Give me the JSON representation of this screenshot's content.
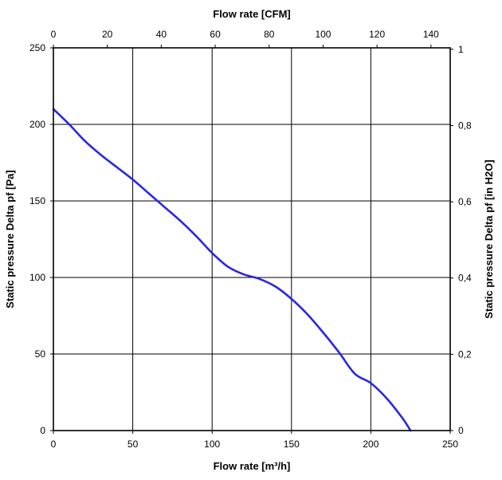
{
  "chart_data": {
    "type": "line",
    "x_top_label": "Flow rate [CFM]",
    "x_bottom_label": "Flow rate [m³/h]",
    "y_left_label": "Static pressure Delta pf [Pa]",
    "y_right_label": "Static pressure Delta pf [in H2O]",
    "x_bottom_range": [
      0,
      250
    ],
    "x_bottom_ticks": [
      "0",
      "50",
      "100",
      "150",
      "200",
      "250"
    ],
    "x_top_range": [
      0,
      147.14
    ],
    "x_top_ticks": [
      "0",
      "20",
      "40",
      "60",
      "80",
      "100",
      "120",
      "140"
    ],
    "y_left_range": [
      0,
      250
    ],
    "y_left_ticks": [
      "0",
      "50",
      "100",
      "150",
      "200",
      "250"
    ],
    "y_right_range": [
      0,
      1.0037
    ],
    "y_right_ticks": [
      "0",
      "0,2",
      "0,4",
      "0,6",
      "0,8",
      "1"
    ],
    "grid": true,
    "series_color": "#2626ee",
    "series": [
      {
        "x": [
          0,
          10,
          20,
          30,
          40,
          50,
          60,
          70,
          80,
          90,
          100,
          110,
          120,
          130,
          140,
          150,
          160,
          170,
          180,
          190,
          200,
          210,
          220,
          225
        ],
        "y": [
          210,
          200,
          189,
          180,
          172,
          164,
          155,
          146,
          137,
          127,
          116,
          107,
          102,
          99,
          94,
          86,
          76,
          64,
          51,
          37,
          31,
          21,
          8,
          0
        ]
      }
    ]
  }
}
